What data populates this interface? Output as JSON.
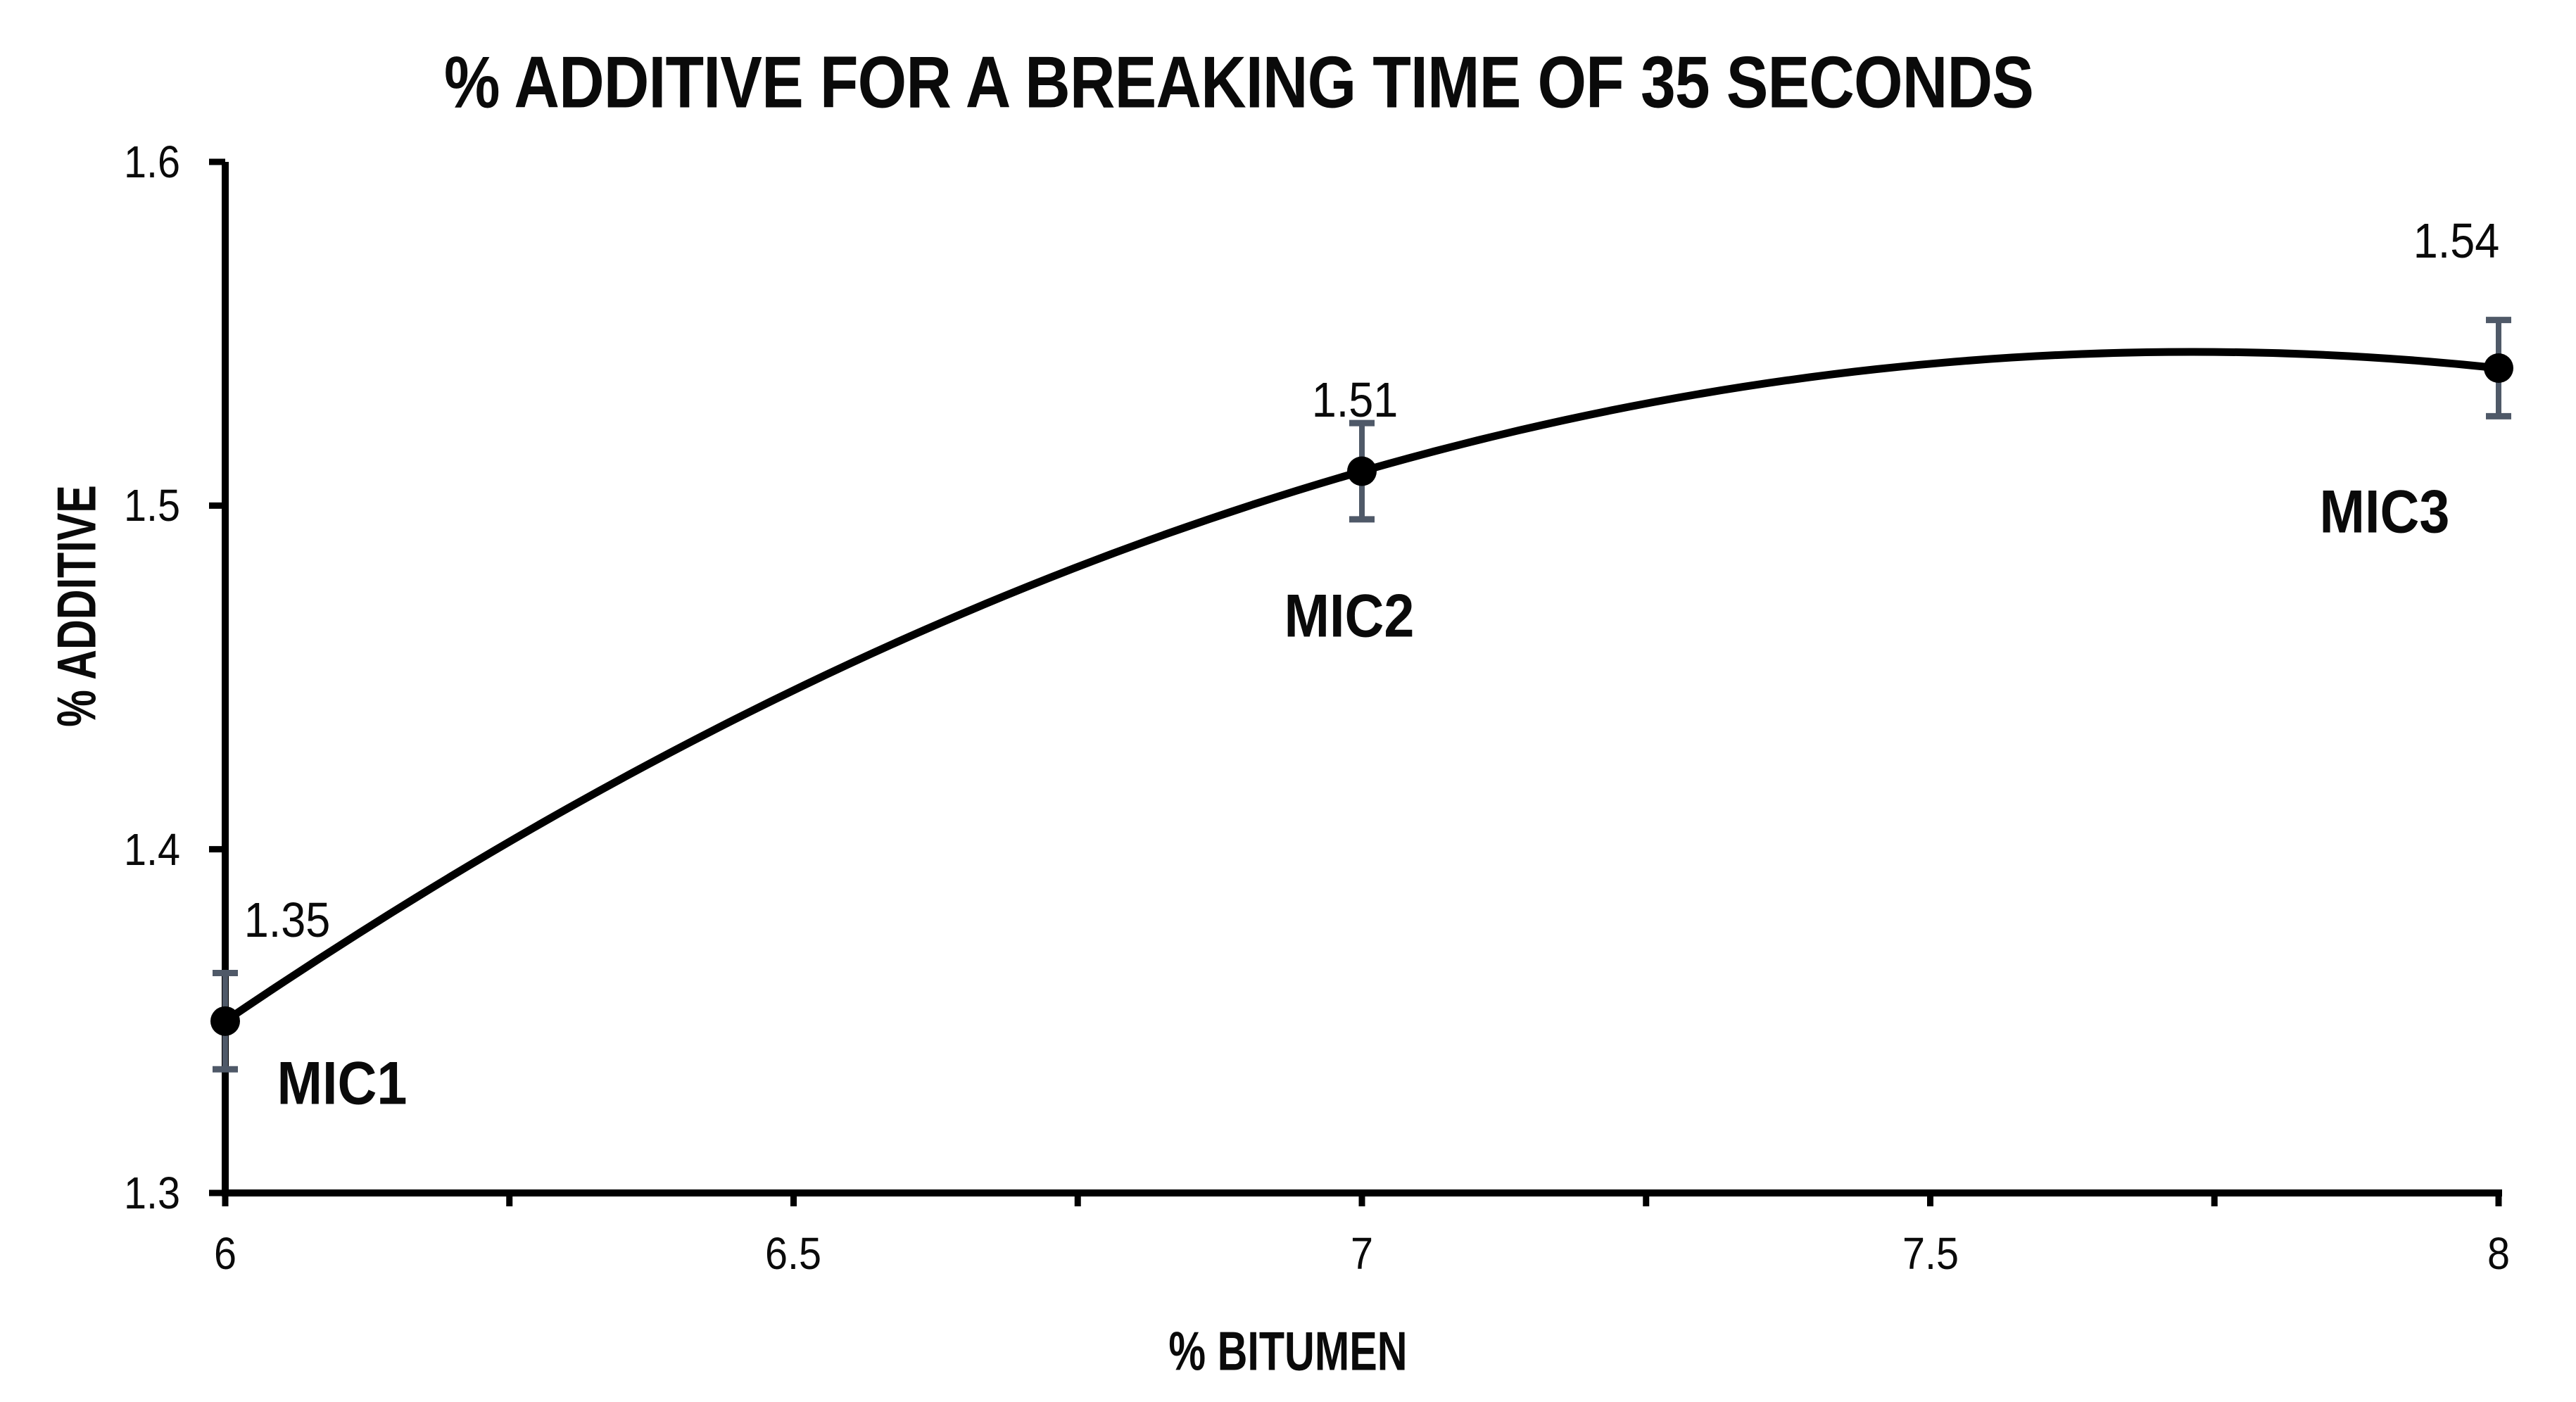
{
  "chart_data": {
    "type": "line",
    "title": "% ADDITIVE FOR A BREAKING TIME OF 35 SECONDS",
    "xlabel": "% BITUMEN",
    "ylabel": "% ADDITIVE",
    "x": [
      6,
      7,
      8
    ],
    "y": [
      1.35,
      1.51,
      1.54
    ],
    "point_labels": [
      "1.35",
      "1.51",
      "1.54"
    ],
    "point_names": [
      "MIC1",
      "MIC2",
      "MIC3"
    ],
    "error_bars": 0.014,
    "xlim": [
      6,
      8
    ],
    "ylim": [
      1.3,
      1.6
    ],
    "xticks": [
      6,
      6.5,
      7,
      7.5,
      8
    ],
    "xtick_labels": [
      "6",
      "6.5",
      "7",
      "7.5",
      "8"
    ],
    "x_minor_tick_step": 0.25,
    "yticks": [
      1.3,
      1.4,
      1.5,
      1.6
    ],
    "ytick_labels": [
      "1.3",
      "1.4",
      "1.5",
      "1.6"
    ],
    "grid": false,
    "legend": false,
    "curve_style": "smooth quadratic through points, markers with vertical error bars",
    "colors": {
      "line": "#000000",
      "marker": "#000000",
      "error_bar": "#4f5968",
      "text": "#0a0a0a",
      "background": "#ffffff"
    }
  }
}
